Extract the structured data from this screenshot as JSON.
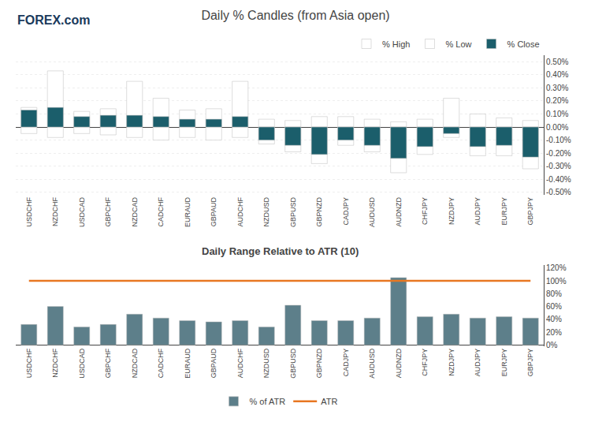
{
  "chart_data": [
    {
      "type": "bar",
      "title": "Daily % Candles (from Asia open)",
      "categories": [
        "USDCHF",
        "NZDCHF",
        "USDCAD",
        "GBPCHF",
        "NZDCAD",
        "CADCHF",
        "EURAUD",
        "GBPAUD",
        "AUDCHF",
        "NZDUSD",
        "GBPUSD",
        "GBPNZD",
        "CADJPY",
        "AUDUSD",
        "AUDNZD",
        "CHFJPY",
        "NZDJPY",
        "AUDJPY",
        "EURJPY",
        "GBPJPY"
      ],
      "series": [
        {
          "name": "% High",
          "color": "#ffffff",
          "values": [
            0.15,
            0.43,
            0.12,
            0.14,
            0.35,
            0.22,
            0.13,
            0.14,
            0.35,
            0.06,
            0.05,
            0.08,
            0.08,
            0.06,
            0.04,
            0.06,
            0.22,
            0.1,
            0.07,
            0.05
          ]
        },
        {
          "name": "% Low",
          "color": "#ffffff",
          "values": [
            -0.05,
            -0.08,
            -0.05,
            -0.06,
            -0.08,
            -0.1,
            -0.08,
            -0.1,
            -0.08,
            -0.13,
            -0.19,
            -0.28,
            -0.14,
            -0.19,
            -0.35,
            -0.21,
            -0.08,
            -0.22,
            -0.22,
            -0.32
          ]
        },
        {
          "name": "% Close",
          "color": "#1b5e6b",
          "values": [
            0.13,
            0.15,
            0.08,
            0.09,
            0.09,
            0.08,
            0.06,
            0.06,
            0.08,
            -0.1,
            -0.14,
            -0.21,
            -0.1,
            -0.14,
            -0.24,
            -0.15,
            -0.05,
            -0.15,
            -0.14,
            -0.23
          ]
        }
      ],
      "ylim": [
        -0.52,
        0.55
      ],
      "yticks": [
        {
          "value": -0.5,
          "label": "-0.50%"
        },
        {
          "value": -0.4,
          "label": "-0.40%"
        },
        {
          "value": -0.3,
          "label": "-0.30%"
        },
        {
          "value": -0.2,
          "label": "-0.20%"
        },
        {
          "value": -0.1,
          "label": "-0.10%"
        },
        {
          "value": 0,
          "label": "0.00%"
        },
        {
          "value": 0.1,
          "label": "0.10%"
        },
        {
          "value": 0.2,
          "label": "0.20%"
        },
        {
          "value": 0.3,
          "label": "0.30%"
        },
        {
          "value": 0.4,
          "label": "0.40%"
        },
        {
          "value": 0.5,
          "label": "0.50%"
        }
      ],
      "grid": true,
      "legend": "upper right",
      "annotations": [
        "FOREX.com"
      ]
    },
    {
      "type": "bar",
      "title": "Daily Range Relative to ATR (10)",
      "categories": [
        "USDCHF",
        "NZDCHF",
        "USDCAD",
        "GBPCHF",
        "NZDCAD",
        "CADCHF",
        "EURAUD",
        "GBPAUD",
        "AUDCHF",
        "NZDUSD",
        "GBPUSD",
        "GBPNZD",
        "CADJPY",
        "AUDUSD",
        "AUDNZD",
        "CHFJPY",
        "NZDJPY",
        "AUDJPY",
        "EURJPY",
        "GBPJPY"
      ],
      "series": [
        {
          "name": "% of ATR",
          "color": "#5d7f8a",
          "values": [
            32,
            60,
            28,
            32,
            48,
            42,
            38,
            36,
            38,
            28,
            62,
            38,
            38,
            42,
            105,
            44,
            48,
            42,
            44,
            42
          ]
        },
        {
          "name": "ATR",
          "type": "line",
          "color": "#e87722",
          "values": [
            100,
            100,
            100,
            100,
            100,
            100,
            100,
            100,
            100,
            100,
            100,
            100,
            100,
            100,
            100,
            100,
            100,
            100,
            100,
            100
          ]
        }
      ],
      "ylim": [
        -2,
        125
      ],
      "yticks": [
        {
          "value": 0,
          "label": "0%"
        },
        {
          "value": 20,
          "label": "20%"
        },
        {
          "value": 40,
          "label": "40%"
        },
        {
          "value": 60,
          "label": "60%"
        },
        {
          "value": 80,
          "label": "80%"
        },
        {
          "value": 100,
          "label": "100%"
        },
        {
          "value": 120,
          "label": "120%"
        }
      ],
      "grid": false,
      "legend": "lower center"
    }
  ]
}
